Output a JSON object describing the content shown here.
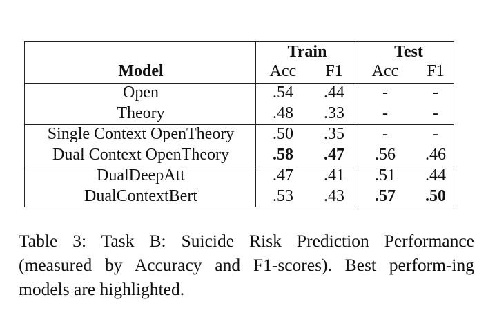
{
  "table": {
    "group_headers": {
      "train": "Train",
      "test": "Test"
    },
    "columns": {
      "model": "Model",
      "train_acc": "Acc",
      "train_f1": "F1",
      "test_acc": "Acc",
      "test_f1": "F1"
    },
    "rows": [
      {
        "model": "Open",
        "train_acc": ".54",
        "train_f1": ".44",
        "test_acc": "-",
        "test_f1": "-"
      },
      {
        "model": "Theory",
        "train_acc": ".48",
        "train_f1": ".33",
        "test_acc": "-",
        "test_f1": "-"
      },
      {
        "model": "Single Context OpenTheory",
        "train_acc": ".50",
        "train_f1": ".35",
        "test_acc": "-",
        "test_f1": "-"
      },
      {
        "model": "Dual Context OpenTheory",
        "train_acc": ".58",
        "train_f1": ".47",
        "test_acc": ".56",
        "test_f1": ".46"
      },
      {
        "model": "DualDeepAtt",
        "train_acc": ".47",
        "train_f1": ".41",
        "test_acc": ".51",
        "test_f1": ".44"
      },
      {
        "model": "DualContextBert",
        "train_acc": ".53",
        "train_f1": ".43",
        "test_acc": ".57",
        "test_f1": ".50"
      }
    ]
  },
  "caption": "Table 3: Task B: Suicide Risk Prediction Performance (measured by Accuracy and F1-scores). Best perform-ing models are highlighted."
}
